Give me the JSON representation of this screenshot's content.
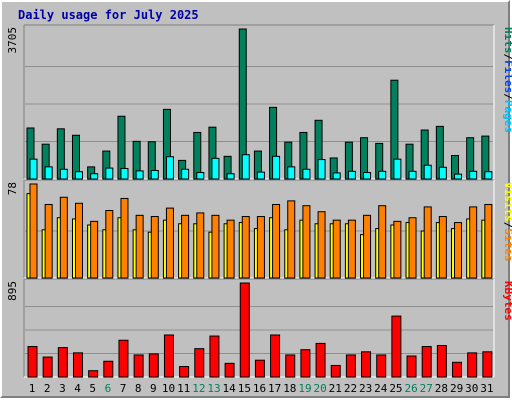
{
  "title": "Daily usage for July 2025",
  "chart_data": [
    {
      "panel": "hits-files-pages",
      "type": "bar",
      "ymax_label": "3705",
      "ylim": [
        0,
        3705
      ],
      "legend": [
        {
          "text": "Hits",
          "color": "#00805c"
        },
        {
          "text": "/",
          "color": "#000000"
        },
        {
          "text": "Files",
          "color": "#0040ff"
        },
        {
          "text": "/",
          "color": "#000000"
        },
        {
          "text": "Pages",
          "color": "#00c0ff"
        }
      ],
      "categories": [
        "1",
        "2",
        "3",
        "4",
        "5",
        "6",
        "7",
        "8",
        "9",
        "10",
        "11",
        "12",
        "13",
        "14",
        "15",
        "16",
        "17",
        "18",
        "19",
        "20",
        "21",
        "22",
        "23",
        "24",
        "25",
        "26",
        "27",
        "28",
        "29",
        "30",
        "31"
      ],
      "series": [
        {
          "key": "hits",
          "color": "#00805c",
          "values": [
            1260,
            860,
            1240,
            1080,
            300,
            690,
            1550,
            930,
            920,
            1720,
            460,
            1150,
            1280,
            560,
            3705,
            690,
            1770,
            910,
            1150,
            1450,
            520,
            910,
            1020,
            880,
            2440,
            860,
            1210,
            1300,
            580,
            1020,
            1060
          ]
        },
        {
          "key": "pages",
          "color": "#00ffff",
          "values": [
            490,
            300,
            240,
            180,
            130,
            270,
            260,
            200,
            210,
            550,
            240,
            160,
            510,
            130,
            600,
            170,
            560,
            300,
            240,
            480,
            150,
            190,
            160,
            190,
            490,
            190,
            340,
            290,
            120,
            190,
            180
          ]
        }
      ]
    },
    {
      "panel": "visits-sites",
      "type": "bar",
      "ymax_label": "78",
      "ylim": [
        0,
        78
      ],
      "legend": [
        {
          "text": "Visits",
          "color": "#ffff00"
        },
        {
          "text": "/",
          "color": "#000000"
        },
        {
          "text": "Sites",
          "color": "#ff8000"
        }
      ],
      "categories": [
        "1",
        "2",
        "3",
        "4",
        "5",
        "6",
        "7",
        "8",
        "9",
        "10",
        "11",
        "12",
        "13",
        "14",
        "15",
        "16",
        "17",
        "18",
        "19",
        "20",
        "21",
        "22",
        "23",
        "24",
        "25",
        "26",
        "27",
        "28",
        "29",
        "30",
        "31"
      ],
      "series": [
        {
          "key": "visits",
          "color": "#ffff00",
          "values": [
            70,
            40,
            50,
            49,
            44,
            40,
            50,
            40,
            38,
            48,
            45,
            45,
            38,
            45,
            46,
            41,
            50,
            40,
            48,
            45,
            45,
            45,
            36,
            41,
            44,
            46,
            39,
            46,
            41,
            49,
            48
          ]
        },
        {
          "key": "sites",
          "color": "#ff8000",
          "values": [
            78,
            61,
            67,
            62,
            47,
            56,
            66,
            52,
            51,
            58,
            52,
            54,
            52,
            48,
            51,
            51,
            61,
            64,
            60,
            55,
            48,
            48,
            52,
            60,
            47,
            50,
            59,
            51,
            46,
            59,
            61
          ]
        }
      ]
    },
    {
      "panel": "kbytes",
      "type": "bar",
      "ymax_label": "895",
      "ylim": [
        0,
        895
      ],
      "legend": [
        {
          "text": "KBytes",
          "color": "#ff0000"
        }
      ],
      "categories": [
        "1",
        "2",
        "3",
        "4",
        "5",
        "6",
        "7",
        "8",
        "9",
        "10",
        "11",
        "12",
        "13",
        "14",
        "15",
        "16",
        "17",
        "18",
        "19",
        "20",
        "21",
        "22",
        "23",
        "24",
        "25",
        "26",
        "27",
        "28",
        "29",
        "30",
        "31"
      ],
      "series": [
        {
          "key": "kbytes",
          "color": "#ff0000",
          "values": [
            290,
            190,
            280,
            230,
            60,
            150,
            350,
            210,
            220,
            400,
            100,
            270,
            390,
            130,
            895,
            160,
            400,
            210,
            260,
            320,
            110,
            210,
            240,
            210,
            580,
            200,
            290,
            300,
            140,
            230,
            240
          ]
        }
      ]
    }
  ],
  "day_labels": [
    {
      "text": "1",
      "color": "#000000"
    },
    {
      "text": "2",
      "color": "#000000"
    },
    {
      "text": "3",
      "color": "#000000"
    },
    {
      "text": "4",
      "color": "#000000"
    },
    {
      "text": "5",
      "color": "#000000"
    },
    {
      "text": "6",
      "color": "#00805c"
    },
    {
      "text": "7",
      "color": "#000000"
    },
    {
      "text": "8",
      "color": "#000000"
    },
    {
      "text": "9",
      "color": "#000000"
    },
    {
      "text": "10",
      "color": "#000000"
    },
    {
      "text": "11",
      "color": "#000000"
    },
    {
      "text": "12",
      "color": "#00805c"
    },
    {
      "text": "13",
      "color": "#00805c"
    },
    {
      "text": "14",
      "color": "#000000"
    },
    {
      "text": "15",
      "color": "#000000"
    },
    {
      "text": "16",
      "color": "#000000"
    },
    {
      "text": "17",
      "color": "#000000"
    },
    {
      "text": "18",
      "color": "#000000"
    },
    {
      "text": "19",
      "color": "#00805c"
    },
    {
      "text": "20",
      "color": "#00805c"
    },
    {
      "text": "21",
      "color": "#000000"
    },
    {
      "text": "22",
      "color": "#000000"
    },
    {
      "text": "23",
      "color": "#000000"
    },
    {
      "text": "24",
      "color": "#000000"
    },
    {
      "text": "25",
      "color": "#000000"
    },
    {
      "text": "26",
      "color": "#00805c"
    },
    {
      "text": "27",
      "color": "#00805c"
    },
    {
      "text": "28",
      "color": "#000000"
    },
    {
      "text": "29",
      "color": "#000000"
    },
    {
      "text": "30",
      "color": "#000000"
    },
    {
      "text": "31",
      "color": "#000000"
    }
  ]
}
